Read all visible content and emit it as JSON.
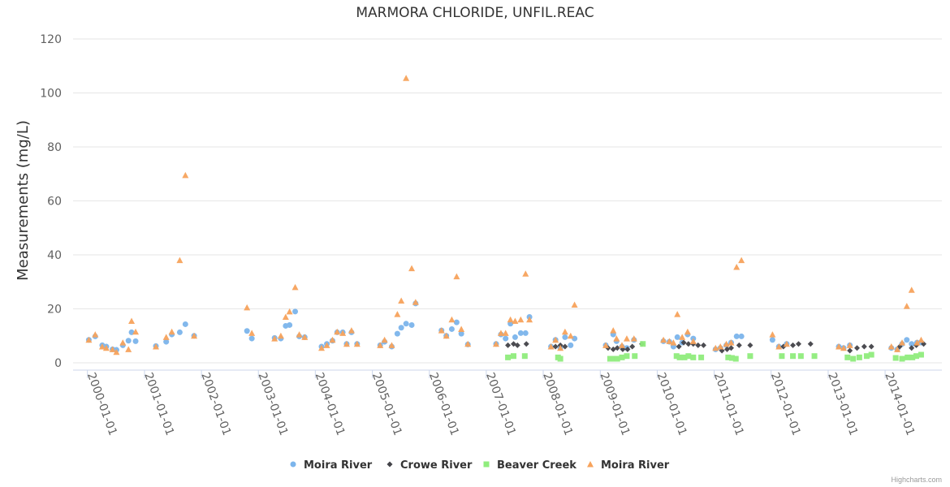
{
  "chart_data": {
    "type": "scatter",
    "title": "MARMORA CHLORIDE, UNFIL.REAC",
    "ylabel": "Measurements (mg/L)",
    "xlabel": "",
    "ylim": [
      0,
      120
    ],
    "yticks": [
      0,
      20,
      40,
      60,
      80,
      100,
      120
    ],
    "xlim": [
      "1999-10-01",
      "2014-12-31"
    ],
    "xticks": [
      "2000-01-01",
      "2001-01-01",
      "2002-01-01",
      "2003-01-01",
      "2004-01-01",
      "2005-01-01",
      "2006-01-01",
      "2007-01-01",
      "2008-01-01",
      "2009-01-01",
      "2010-01-01",
      "2011-01-01",
      "2012-01-01",
      "2013-01-01",
      "2014-01-01"
    ],
    "grid": "horizontal",
    "legend_position": "bottom-center",
    "series": [
      {
        "name": "Moira River",
        "marker": "circle",
        "color": "#7cb5ec",
        "points": [
          [
            "2000-01-10",
            8.5
          ],
          [
            "2000-02-20",
            9.8
          ],
          [
            "2000-04-05",
            6.5
          ],
          [
            "2000-05-01",
            6.0
          ],
          [
            "2000-06-10",
            5.0
          ],
          [
            "2000-07-05",
            4.8
          ],
          [
            "2000-08-15",
            6.5
          ],
          [
            "2000-09-20",
            8.2
          ],
          [
            "2000-10-10",
            11.3
          ],
          [
            "2000-11-05",
            8.0
          ],
          [
            "2001-03-15",
            6.2
          ],
          [
            "2001-05-20",
            7.8
          ],
          [
            "2001-06-25",
            10.5
          ],
          [
            "2001-08-15",
            11.3
          ],
          [
            "2001-09-20",
            14.3
          ],
          [
            "2001-11-15",
            10.0
          ],
          [
            "2002-10-20",
            11.8
          ],
          [
            "2002-11-20",
            9.0
          ],
          [
            "2003-04-15",
            9.2
          ],
          [
            "2003-05-25",
            9.0
          ],
          [
            "2003-06-25",
            13.7
          ],
          [
            "2003-07-20",
            14.0
          ],
          [
            "2003-08-25",
            19.0
          ],
          [
            "2003-09-20",
            9.8
          ],
          [
            "2003-10-25",
            9.5
          ],
          [
            "2004-02-10",
            6.0
          ],
          [
            "2004-03-15",
            7.0
          ],
          [
            "2004-04-20",
            8.2
          ],
          [
            "2004-05-20",
            11.3
          ],
          [
            "2004-06-25",
            11.3
          ],
          [
            "2004-07-20",
            7.0
          ],
          [
            "2004-08-20",
            11.3
          ],
          [
            "2004-09-25",
            7.0
          ],
          [
            "2005-02-20",
            6.5
          ],
          [
            "2005-03-20",
            7.8
          ],
          [
            "2005-05-05",
            6.0
          ],
          [
            "2005-06-10",
            10.8
          ],
          [
            "2005-07-05",
            13.0
          ],
          [
            "2005-08-05",
            14.5
          ],
          [
            "2005-09-10",
            14.0
          ],
          [
            "2005-10-05",
            22.0
          ],
          [
            "2006-03-20",
            12.0
          ],
          [
            "2006-04-20",
            10.0
          ],
          [
            "2006-05-25",
            12.5
          ],
          [
            "2006-06-25",
            15.0
          ],
          [
            "2006-07-25",
            10.8
          ],
          [
            "2006-09-05",
            6.8
          ],
          [
            "2007-03-05",
            7.0
          ],
          [
            "2007-04-05",
            10.5
          ],
          [
            "2007-05-05",
            9.0
          ],
          [
            "2007-06-05",
            14.5
          ],
          [
            "2007-07-05",
            9.5
          ],
          [
            "2007-08-10",
            11.0
          ],
          [
            "2007-09-10",
            11.0
          ],
          [
            "2007-10-05",
            17.0
          ],
          [
            "2008-02-20",
            6.0
          ],
          [
            "2008-03-20",
            8.5
          ],
          [
            "2008-04-20",
            5.5
          ],
          [
            "2008-05-20",
            9.5
          ],
          [
            "2008-06-25",
            6.5
          ],
          [
            "2008-07-20",
            9.0
          ],
          [
            "2009-02-05",
            6.5
          ],
          [
            "2009-03-25",
            10.5
          ],
          [
            "2009-04-15",
            8.0
          ],
          [
            "2009-05-20",
            6.0
          ],
          [
            "2009-06-20",
            5.5
          ],
          [
            "2009-08-05",
            8.5
          ],
          [
            "2010-02-10",
            8.0
          ],
          [
            "2010-03-20",
            7.8
          ],
          [
            "2010-04-15",
            6.0
          ],
          [
            "2010-05-10",
            9.5
          ],
          [
            "2010-06-10",
            7.5
          ],
          [
            "2010-07-15",
            10.5
          ],
          [
            "2010-08-20",
            9.0
          ],
          [
            "2011-01-10",
            5.0
          ],
          [
            "2011-02-10",
            5.5
          ],
          [
            "2011-03-20",
            6.5
          ],
          [
            "2011-04-20",
            7.5
          ],
          [
            "2011-05-25",
            9.8
          ],
          [
            "2011-06-25",
            9.8
          ],
          [
            "2012-01-10",
            8.5
          ],
          [
            "2012-02-20",
            6.0
          ],
          [
            "2012-04-10",
            7.0
          ],
          [
            "2013-03-10",
            6.0
          ],
          [
            "2013-04-10",
            5.5
          ],
          [
            "2013-05-20",
            6.5
          ],
          [
            "2014-02-10",
            5.5
          ],
          [
            "2014-03-20",
            5.0
          ],
          [
            "2014-04-20",
            7.0
          ],
          [
            "2014-05-20",
            8.5
          ],
          [
            "2014-06-20",
            7.0
          ],
          [
            "2014-07-25",
            7.5
          ],
          [
            "2014-08-20",
            7.5
          ]
        ]
      },
      {
        "name": "Crowe River",
        "marker": "diamond",
        "color": "#434348",
        "points": [
          [
            "2007-05-20",
            6.5
          ],
          [
            "2007-06-25",
            7.0
          ],
          [
            "2007-07-20",
            6.5
          ],
          [
            "2007-09-15",
            7.0
          ],
          [
            "2008-03-20",
            6.0
          ],
          [
            "2008-04-20",
            6.5
          ],
          [
            "2008-05-20",
            6.0
          ],
          [
            "2009-02-20",
            5.5
          ],
          [
            "2009-03-25",
            5.0
          ],
          [
            "2009-04-20",
            5.5
          ],
          [
            "2009-05-25",
            5.0
          ],
          [
            "2009-06-25",
            5.0
          ],
          [
            "2009-07-25",
            6.0
          ],
          [
            "2009-09-25",
            7.0
          ],
          [
            "2010-05-20",
            6.0
          ],
          [
            "2010-06-20",
            7.5
          ],
          [
            "2010-07-20",
            7.0
          ],
          [
            "2010-08-20",
            7.0
          ],
          [
            "2010-09-20",
            6.5
          ],
          [
            "2010-10-25",
            6.5
          ],
          [
            "2011-02-20",
            4.5
          ],
          [
            "2011-03-25",
            5.0
          ],
          [
            "2011-04-20",
            5.5
          ],
          [
            "2011-06-10",
            6.5
          ],
          [
            "2011-08-20",
            6.5
          ],
          [
            "2012-03-20",
            6.0
          ],
          [
            "2012-05-20",
            6.5
          ],
          [
            "2012-06-25",
            7.0
          ],
          [
            "2012-09-10",
            7.0
          ],
          [
            "2013-05-20",
            4.5
          ],
          [
            "2013-07-05",
            5.5
          ],
          [
            "2013-08-20",
            6.0
          ],
          [
            "2013-10-05",
            6.0
          ],
          [
            "2014-04-05",
            6.0
          ],
          [
            "2014-06-20",
            5.5
          ],
          [
            "2014-07-20",
            6.5
          ],
          [
            "2014-09-05",
            7.0
          ]
        ]
      },
      {
        "name": "Beaver Creek",
        "marker": "square",
        "color": "#90ed7d",
        "points": [
          [
            "2007-05-20",
            2.0
          ],
          [
            "2007-06-25",
            2.5
          ],
          [
            "2007-09-05",
            2.5
          ],
          [
            "2008-04-05",
            2.0
          ],
          [
            "2008-04-20",
            1.5
          ],
          [
            "2009-03-05",
            1.5
          ],
          [
            "2009-03-25",
            1.5
          ],
          [
            "2009-04-20",
            1.5
          ],
          [
            "2009-05-20",
            2.0
          ],
          [
            "2009-06-20",
            2.5
          ],
          [
            "2009-08-10",
            2.5
          ],
          [
            "2009-10-01",
            7.0
          ],
          [
            "2010-05-05",
            2.5
          ],
          [
            "2010-05-25",
            2.0
          ],
          [
            "2010-06-25",
            2.0
          ],
          [
            "2010-07-20",
            2.5
          ],
          [
            "2010-08-20",
            2.0
          ],
          [
            "2010-10-10",
            2.0
          ],
          [
            "2011-04-01",
            2.0
          ],
          [
            "2011-04-25",
            1.8
          ],
          [
            "2011-05-20",
            1.5
          ],
          [
            "2011-08-20",
            2.5
          ],
          [
            "2012-03-10",
            2.5
          ],
          [
            "2012-05-20",
            2.5
          ],
          [
            "2012-07-10",
            2.5
          ],
          [
            "2012-10-05",
            2.5
          ],
          [
            "2013-05-05",
            2.0
          ],
          [
            "2013-06-10",
            1.5
          ],
          [
            "2013-07-20",
            2.0
          ],
          [
            "2013-09-05",
            2.5
          ],
          [
            "2013-10-05",
            3.0
          ],
          [
            "2014-03-10",
            1.8
          ],
          [
            "2014-04-20",
            1.5
          ],
          [
            "2014-05-25",
            2.0
          ],
          [
            "2014-06-25",
            2.0
          ],
          [
            "2014-07-20",
            2.5
          ],
          [
            "2014-08-20",
            3.0
          ]
        ]
      },
      {
        "name": "Moira River",
        "marker": "triangle",
        "color": "#f7a35c",
        "points": [
          [
            "2000-01-10",
            8.5
          ],
          [
            "2000-02-20",
            10.5
          ],
          [
            "2000-04-05",
            6.0
          ],
          [
            "2000-05-01",
            5.5
          ],
          [
            "2000-06-10",
            5.0
          ],
          [
            "2000-07-05",
            4.0
          ],
          [
            "2000-08-15",
            7.5
          ],
          [
            "2000-09-20",
            5.0
          ],
          [
            "2000-10-10",
            15.5
          ],
          [
            "2000-11-05",
            11.5
          ],
          [
            "2001-03-15",
            6.0
          ],
          [
            "2001-05-20",
            9.5
          ],
          [
            "2001-06-25",
            11.5
          ],
          [
            "2001-08-15",
            38.0
          ],
          [
            "2001-09-20",
            69.5
          ],
          [
            "2001-11-15",
            10.0
          ],
          [
            "2002-10-20",
            20.5
          ],
          [
            "2002-11-20",
            11.0
          ],
          [
            "2003-04-15",
            9.0
          ],
          [
            "2003-05-25",
            10.0
          ],
          [
            "2003-06-25",
            17.0
          ],
          [
            "2003-07-20",
            19.0
          ],
          [
            "2003-08-25",
            28.0
          ],
          [
            "2003-09-20",
            10.5
          ],
          [
            "2003-10-25",
            9.5
          ],
          [
            "2004-02-10",
            5.5
          ],
          [
            "2004-03-15",
            6.5
          ],
          [
            "2004-04-20",
            8.5
          ],
          [
            "2004-05-20",
            11.5
          ],
          [
            "2004-06-25",
            11.0
          ],
          [
            "2004-07-20",
            7.0
          ],
          [
            "2004-08-20",
            12.0
          ],
          [
            "2004-09-25",
            7.0
          ],
          [
            "2005-02-20",
            6.5
          ],
          [
            "2005-03-20",
            8.5
          ],
          [
            "2005-05-05",
            6.5
          ],
          [
            "2005-06-10",
            18.0
          ],
          [
            "2005-07-05",
            23.0
          ],
          [
            "2005-08-05",
            105.5
          ],
          [
            "2005-09-10",
            35.0
          ],
          [
            "2005-10-05",
            22.5
          ],
          [
            "2006-03-20",
            12.0
          ],
          [
            "2006-04-20",
            10.0
          ],
          [
            "2006-05-25",
            16.0
          ],
          [
            "2006-06-25",
            32.0
          ],
          [
            "2006-07-25",
            12.5
          ],
          [
            "2006-09-05",
            7.0
          ],
          [
            "2007-03-05",
            7.0
          ],
          [
            "2007-04-05",
            11.0
          ],
          [
            "2007-05-05",
            11.0
          ],
          [
            "2007-06-05",
            16.0
          ],
          [
            "2007-07-05",
            15.5
          ],
          [
            "2007-08-10",
            16.0
          ],
          [
            "2007-09-10",
            33.0
          ],
          [
            "2007-10-05",
            16.0
          ],
          [
            "2008-02-20",
            6.0
          ],
          [
            "2008-03-20",
            8.5
          ],
          [
            "2008-04-20",
            5.5
          ],
          [
            "2008-05-20",
            11.5
          ],
          [
            "2008-06-25",
            10.0
          ],
          [
            "2008-07-20",
            21.5
          ],
          [
            "2009-02-05",
            6.5
          ],
          [
            "2009-03-25",
            12.0
          ],
          [
            "2009-04-15",
            9.0
          ],
          [
            "2009-05-20",
            6.5
          ],
          [
            "2009-06-20",
            9.0
          ],
          [
            "2009-08-05",
            9.0
          ],
          [
            "2010-02-10",
            8.5
          ],
          [
            "2010-03-20",
            8.0
          ],
          [
            "2010-04-15",
            7.5
          ],
          [
            "2010-05-10",
            18.0
          ],
          [
            "2010-06-10",
            9.5
          ],
          [
            "2010-07-15",
            11.5
          ],
          [
            "2010-08-20",
            8.0
          ],
          [
            "2011-01-10",
            5.5
          ],
          [
            "2011-02-10",
            6.0
          ],
          [
            "2011-03-20",
            7.0
          ],
          [
            "2011-04-20",
            7.5
          ],
          [
            "2011-05-25",
            35.5
          ],
          [
            "2011-06-25",
            38.0
          ],
          [
            "2012-01-10",
            10.5
          ],
          [
            "2012-02-20",
            6.0
          ],
          [
            "2012-04-10",
            7.0
          ],
          [
            "2013-03-10",
            6.0
          ],
          [
            "2013-04-10",
            5.5
          ],
          [
            "2013-05-20",
            6.5
          ],
          [
            "2014-02-10",
            6.0
          ],
          [
            "2014-03-20",
            5.0
          ],
          [
            "2014-04-20",
            7.5
          ],
          [
            "2014-05-20",
            21.0
          ],
          [
            "2014-06-20",
            27.0
          ],
          [
            "2014-07-25",
            7.5
          ],
          [
            "2014-08-20",
            8.5
          ]
        ]
      }
    ],
    "credits": "Highcharts.com"
  }
}
